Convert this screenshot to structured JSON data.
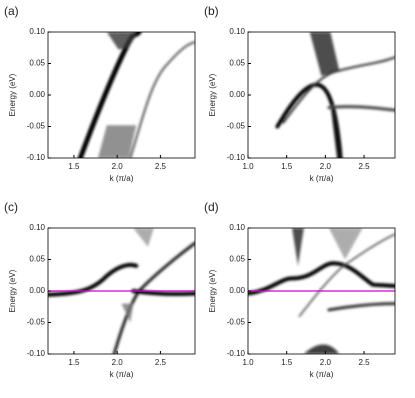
{
  "chart_data": [
    {
      "type": "density",
      "panel_label": "(a)",
      "xlabel": "k (π/a)",
      "ylabel": "Energy (eV)",
      "xlim": [
        1.2,
        2.9
      ],
      "ylim": [
        -0.1,
        0.1
      ],
      "xticks": [
        1.5,
        {
          "value": 2.0,
          "label": "2.0"
        },
        2.5
      ],
      "yticks": [
        {
          "value": -0.1,
          "label": "-0.10"
        },
        {
          "value": -0.05,
          "label": "-0.05"
        },
        {
          "value": 0,
          "label": "0.00"
        },
        {
          "value": 0.05,
          "label": "0.05"
        },
        {
          "value": 0.1,
          "label": "0.10"
        }
      ]
    },
    {
      "type": "density",
      "panel_label": "(b)",
      "xlabel": "k (π/a)",
      "ylabel": "Energy (eV)",
      "xlim": [
        1.0,
        2.9
      ],
      "ylim": [
        -0.1,
        0.1
      ],
      "xticks": [
        {
          "value": 1.0,
          "label": "1.0"
        },
        1.5,
        {
          "value": 2.0,
          "label": "2.0"
        },
        2.5
      ],
      "yticks": [
        {
          "value": -0.1,
          "label": "-0.10"
        },
        {
          "value": -0.05,
          "label": "-0.05"
        },
        {
          "value": 0,
          "label": "0.00"
        },
        {
          "value": 0.05,
          "label": "0.05"
        },
        {
          "value": 0.1,
          "label": "0.10"
        }
      ]
    },
    {
      "type": "density",
      "panel_label": "(c)",
      "xlabel": "k (π/a)",
      "ylabel": "Energy (eV)",
      "xlim": [
        1.2,
        2.9
      ],
      "ylim": [
        -0.1,
        0.1
      ],
      "xticks": [
        1.5,
        {
          "value": 2.0,
          "label": "2.0"
        },
        2.5
      ],
      "yticks": [
        {
          "value": -0.1,
          "label": "-0.10"
        },
        {
          "value": -0.05,
          "label": "-0.05"
        },
        {
          "value": 0,
          "label": "0.00"
        },
        {
          "value": 0.05,
          "label": "0.05"
        },
        {
          "value": 0.1,
          "label": "0.10"
        }
      ],
      "hline": {
        "value": 0,
        "color": "#d400d4"
      }
    },
    {
      "type": "density",
      "panel_label": "(d)",
      "xlabel": "k (π/a)",
      "ylabel": "Energy (eV)",
      "xlim": [
        1.0,
        2.9
      ],
      "ylim": [
        -0.1,
        0.1
      ],
      "xticks": [
        {
          "value": 1.0,
          "label": "1.0"
        },
        1.5,
        {
          "value": 2.0,
          "label": "2.0"
        },
        2.5
      ],
      "yticks": [
        {
          "value": -0.1,
          "label": "-0.10"
        },
        {
          "value": -0.05,
          "label": "-0.05"
        },
        {
          "value": 0,
          "label": "0.00"
        },
        {
          "value": 0.05,
          "label": "0.05"
        },
        {
          "value": 0.1,
          "label": "0.10"
        }
      ],
      "hline": {
        "value": 0,
        "color": "#d400d4"
      }
    }
  ]
}
